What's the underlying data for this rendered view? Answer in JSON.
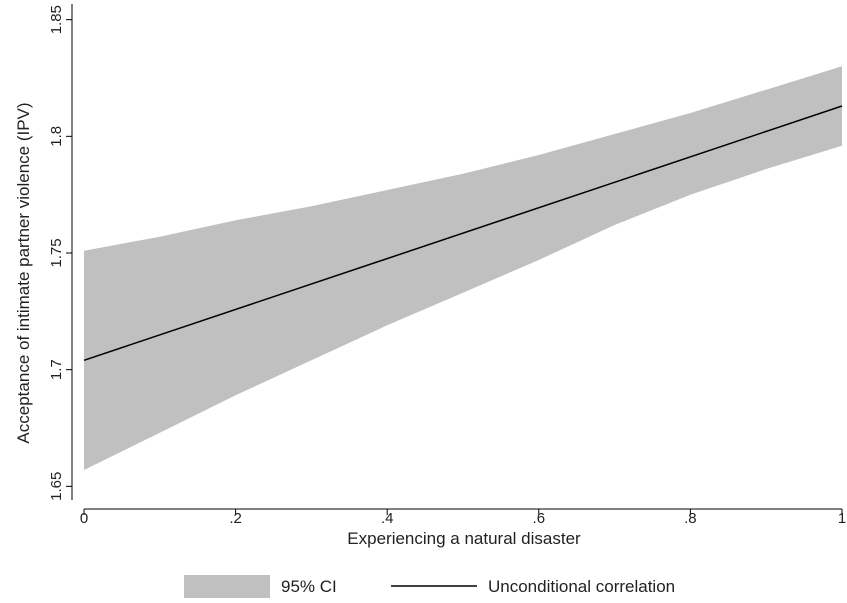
{
  "chart_data": {
    "type": "line",
    "title": "",
    "xlabel": "Experiencing a natural disaster",
    "ylabel": "Acceptance of intimate partner violence (IPV)",
    "xlim": [
      0,
      1
    ],
    "ylim": [
      1.645,
      1.855
    ],
    "x_ticks": [
      0,
      0.2,
      0.4,
      0.6,
      0.8,
      1
    ],
    "x_tick_labels": [
      "0",
      ".2",
      ".4",
      ".6",
      ".8",
      "1"
    ],
    "y_ticks": [
      1.65,
      1.7,
      1.75,
      1.8,
      1.85
    ],
    "y_tick_labels": [
      "1.65",
      "1.7",
      "1.75",
      "1.8",
      "1.85"
    ],
    "grid": false,
    "legend_position": "bottom",
    "series": [
      {
        "name": "Unconditional correlation",
        "kind": "line",
        "color": "#000000",
        "x": [
          0,
          1
        ],
        "y": [
          1.704,
          1.813
        ]
      },
      {
        "name": "95% CI",
        "kind": "band",
        "color": "#c0c0c0",
        "x": [
          0,
          0.1,
          0.2,
          0.3,
          0.4,
          0.5,
          0.6,
          0.7,
          0.8,
          0.9,
          1
        ],
        "lower": [
          1.657,
          1.673,
          1.689,
          1.704,
          1.719,
          1.733,
          1.747,
          1.762,
          1.775,
          1.786,
          1.796
        ],
        "upper": [
          1.751,
          1.757,
          1.764,
          1.77,
          1.777,
          1.784,
          1.792,
          1.801,
          1.81,
          1.82,
          1.83
        ]
      }
    ]
  }
}
